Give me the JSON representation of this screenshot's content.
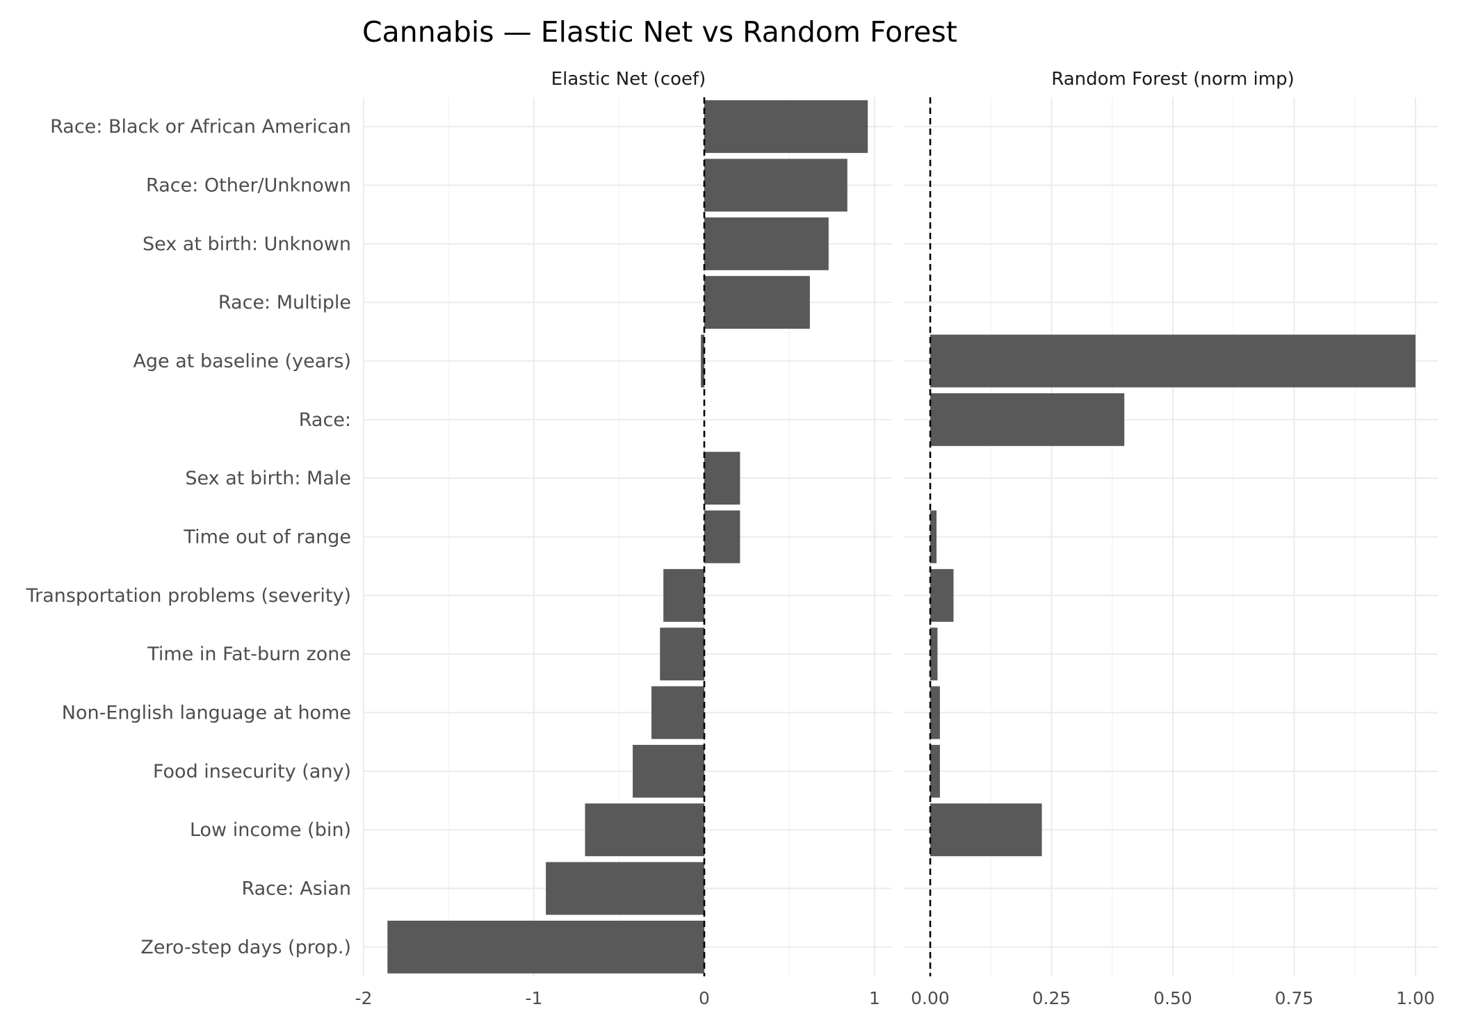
{
  "chart_data": {
    "type": "bar",
    "orientation": "horizontal",
    "title": "Cannabis — Elastic Net vs Random Forest",
    "categories": [
      "Race: Black or African American",
      "Race: Other/Unknown",
      "Sex at birth: Unknown",
      "Race: Multiple",
      "Age at baseline (years)",
      "Race: ",
      "Sex at birth: Male",
      "Time out of range",
      "Transportation problems (severity)",
      "Time in Fat-burn zone",
      "Non-English language at home",
      "Food insecurity (any)",
      "Low income (bin)",
      "Race: Asian",
      "Zero-step days (prop.)"
    ],
    "panels": [
      {
        "name": "Elastic Net (coef)",
        "xlim": [
          -2,
          1.1
        ],
        "ticks": [
          -2,
          -1,
          0,
          1
        ],
        "tick_labels": [
          "-2",
          "-1",
          "0",
          "1"
        ],
        "values": [
          0.96,
          0.84,
          0.73,
          0.62,
          -0.02,
          0,
          0.21,
          0.21,
          -0.24,
          -0.26,
          -0.31,
          -0.42,
          -0.7,
          -0.93,
          -1.86
        ]
      },
      {
        "name": "Random Forest (norm imp)",
        "xlim": [
          0,
          1.05
        ],
        "ticks": [
          0,
          0.25,
          0.5,
          0.75,
          1
        ],
        "tick_labels": [
          "0.00",
          "0.25",
          "0.50",
          "0.75",
          "1.00"
        ],
        "values": [
          0,
          0,
          0,
          0,
          1.0,
          0.4,
          0,
          0.013,
          0.048,
          0.015,
          0.02,
          0.02,
          0.23,
          0,
          0
        ]
      }
    ],
    "reference_line": 0,
    "grid": true,
    "legend": "none"
  }
}
